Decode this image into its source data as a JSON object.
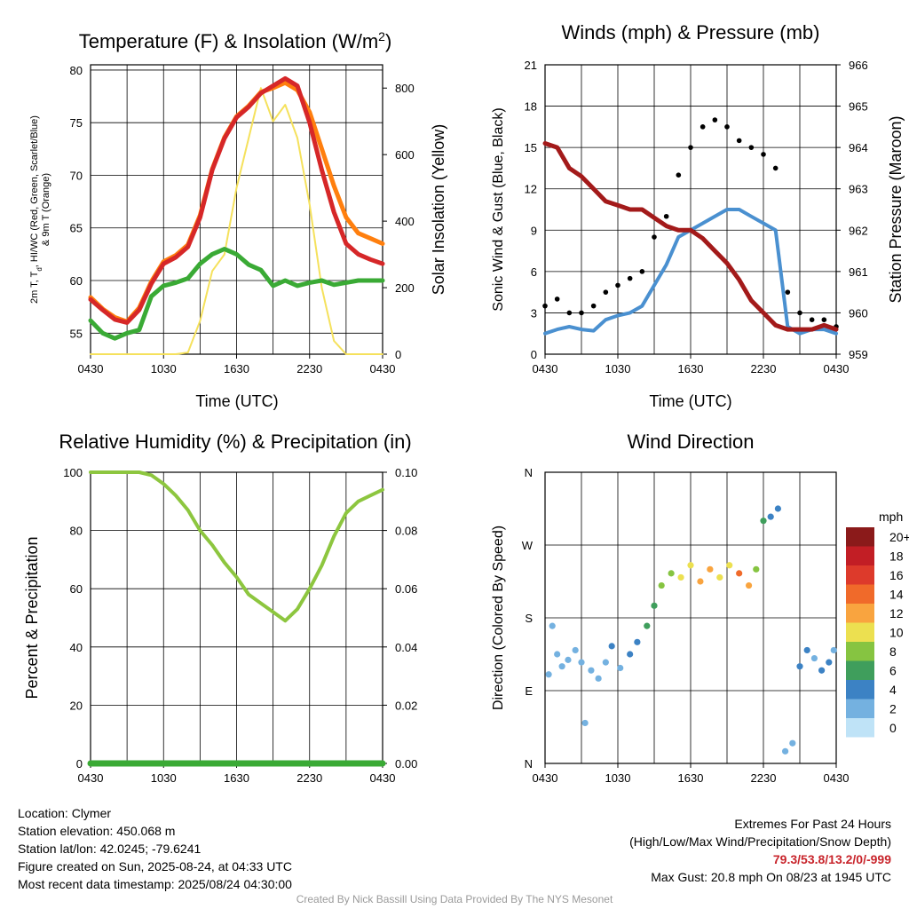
{
  "panels": {
    "temperature": {
      "title": "Temperature (F) & Insolation (W/m",
      "title_sup": "2",
      "title_end": ")",
      "ylabel_left_line1": "2m T, T",
      "ylabel_left_sub": "d",
      "ylabel_left_line1b": ", HI/WC (Red, Green, Scarlet/Blue)",
      "ylabel_left_line2": "& 9m T (Orange)",
      "ylabel_right": "Solar Insolation (Yellow)",
      "xlabel": "Time (UTC)"
    },
    "winds": {
      "title": "Winds (mph) & Pressure (mb)",
      "ylabel_left": "Sonic Wind & Gust (Blue, Black)",
      "ylabel_right": "Station Pressure (Maroon)",
      "xlabel": "Time (UTC)"
    },
    "humidity": {
      "title": "Relative Humidity (%) & Precipitation (in)",
      "ylabel_left": "Percent & Precipitation"
    },
    "direction": {
      "title": "Wind Direction",
      "ylabel_left": "Direction (Colored By Speed)",
      "legend_title": "mph"
    }
  },
  "chart_data": [
    {
      "type": "line",
      "title": "Temperature (F) & Insolation (W/m2)",
      "xlabel": "Time (UTC)",
      "x_ticks": [
        "0430",
        "1030",
        "1630",
        "2230",
        "0430"
      ],
      "x": [
        0,
        1,
        2,
        3,
        4,
        5,
        6,
        7,
        8,
        9,
        10,
        11,
        12,
        13,
        14,
        15,
        16,
        17,
        18,
        19,
        20,
        21,
        22,
        23,
        24
      ],
      "ylim": [
        53,
        80.5
      ],
      "y_ticks": [
        55,
        60,
        65,
        70,
        75,
        80
      ],
      "y2lim": [
        0,
        870
      ],
      "y2_ticks": [
        0,
        200,
        400,
        600,
        800
      ],
      "series": [
        {
          "color": "#d62728",
          "axis": "left",
          "values": [
            58.2,
            57.2,
            56.3,
            56.0,
            57.2,
            59.7,
            61.6,
            62.2,
            63.2,
            66.0,
            70.5,
            73.5,
            75.5,
            76.5,
            77.8,
            78.5,
            79.2,
            78.5,
            75.0,
            70.5,
            66.5,
            63.5,
            62.5,
            62.0,
            61.6
          ]
        },
        {
          "color": "#ff7f0e",
          "axis": "left",
          "values": [
            58.4,
            57.3,
            56.5,
            56.1,
            57.4,
            59.9,
            61.8,
            62.4,
            63.4,
            66.2,
            70.6,
            73.6,
            75.6,
            76.6,
            77.9,
            78.3,
            78.8,
            78.1,
            76.0,
            72.5,
            69.0,
            66.0,
            64.5,
            64.0,
            63.5
          ]
        },
        {
          "color": "#3aaa35",
          "axis": "left",
          "values": [
            56.2,
            55.0,
            54.5,
            55.0,
            55.3,
            58.5,
            59.5,
            59.8,
            60.2,
            61.6,
            62.5,
            63.0,
            62.5,
            61.5,
            61.0,
            59.5,
            60.0,
            59.5,
            59.8,
            60.0,
            59.6,
            59.8,
            60.0,
            60.0,
            60.0
          ]
        },
        {
          "color": "#f5e15c",
          "axis": "right",
          "values": [
            0,
            0,
            0,
            0,
            0,
            0,
            0,
            0,
            5,
            100,
            250,
            300,
            500,
            650,
            800,
            700,
            750,
            650,
            450,
            200,
            40,
            0,
            0,
            0,
            0
          ]
        }
      ]
    },
    {
      "type": "line",
      "title": "Winds (mph) & Pressure (mb)",
      "xlabel": "Time (UTC)",
      "x_ticks": [
        "0430",
        "1030",
        "1630",
        "2230",
        "0430"
      ],
      "x": [
        0,
        1,
        2,
        3,
        4,
        5,
        6,
        7,
        8,
        9,
        10,
        11,
        12,
        13,
        14,
        15,
        16,
        17,
        18,
        19,
        20,
        21,
        22,
        23,
        24
      ],
      "ylim": [
        0,
        21
      ],
      "y_ticks": [
        0,
        3,
        6,
        9,
        12,
        15,
        18,
        21
      ],
      "y2lim": [
        959,
        966
      ],
      "y2_ticks": [
        959,
        960,
        961,
        962,
        963,
        964,
        965,
        966
      ],
      "series": [
        {
          "color": "#4a90d0",
          "axis": "left",
          "values": [
            1.5,
            1.8,
            2.0,
            1.8,
            1.7,
            2.5,
            2.8,
            3.0,
            3.5,
            5.0,
            6.5,
            8.5,
            9.0,
            9.5,
            10.0,
            10.5,
            10.5,
            10.0,
            9.5,
            9.0,
            2.0,
            1.5,
            1.8,
            1.8,
            1.5
          ]
        },
        {
          "color": "#000000",
          "axis": "left",
          "values": [
            3.5,
            4.0,
            3.0,
            3.0,
            3.5,
            4.5,
            5.0,
            5.5,
            6.0,
            8.5,
            10.0,
            13.0,
            15.0,
            16.5,
            17.0,
            16.5,
            15.5,
            15.0,
            14.5,
            13.5,
            4.5,
            3.0,
            2.5,
            2.5,
            2.0
          ]
        },
        {
          "color": "#a31a1a",
          "axis": "right",
          "values": [
            964.1,
            964.0,
            963.5,
            963.3,
            963.0,
            962.7,
            962.6,
            962.5,
            962.5,
            962.3,
            962.1,
            962.0,
            962.0,
            961.8,
            961.5,
            961.2,
            960.8,
            960.3,
            960.0,
            959.7,
            959.6,
            959.6,
            959.6,
            959.7,
            959.6
          ]
        }
      ]
    },
    {
      "type": "line",
      "title": "Relative Humidity (%) & Precipitation (in)",
      "x_ticks": [
        "0430",
        "1030",
        "1630",
        "2230",
        "0430"
      ],
      "x": [
        0,
        1,
        2,
        3,
        4,
        5,
        6,
        7,
        8,
        9,
        10,
        11,
        12,
        13,
        14,
        15,
        16,
        17,
        18,
        19,
        20,
        21,
        22,
        23,
        24
      ],
      "ylim": [
        0,
        100
      ],
      "y_ticks": [
        0,
        20,
        40,
        60,
        80,
        100
      ],
      "y2lim": [
        0,
        0.1
      ],
      "y2_ticks": [
        "0.00",
        "0.02",
        "0.04",
        "0.06",
        "0.08",
        "0.10"
      ],
      "series": [
        {
          "color": "#8dc63f",
          "axis": "left",
          "values": [
            100,
            100,
            100,
            100,
            100,
            99,
            96,
            92,
            87,
            80,
            75,
            69,
            64,
            58,
            55,
            52,
            49,
            53,
            60,
            68,
            78,
            86,
            90,
            92,
            94
          ]
        },
        {
          "color": "#3aaa35",
          "axis": "right",
          "values": [
            0,
            0,
            0,
            0,
            0,
            0,
            0,
            0,
            0,
            0,
            0,
            0,
            0,
            0,
            0,
            0,
            0,
            0,
            0,
            0,
            0,
            0,
            0,
            0,
            0
          ]
        }
      ]
    },
    {
      "type": "scatter",
      "title": "Wind Direction",
      "x_ticks": [
        "0430",
        "1030",
        "1630",
        "2230",
        "0430"
      ],
      "y_ticks": [
        "N",
        "E",
        "S",
        "W",
        "N"
      ],
      "ylim": [
        0,
        360
      ],
      "legend_title": "mph",
      "legend": [
        "20+",
        "18",
        "16",
        "14",
        "12",
        "10",
        "8",
        "6",
        "4",
        "2",
        "0"
      ],
      "legend_colors": [
        "#8b1a1a",
        "#c21e25",
        "#dd3a2b",
        "#f06a2a",
        "#f9a43f",
        "#ece050",
        "#86c441",
        "#3f9e5c",
        "#3c82c4",
        "#74b1e0",
        "#bfe3f7"
      ],
      "points": [
        {
          "x": 0.3,
          "y": 110,
          "speed": 1
        },
        {
          "x": 0.6,
          "y": 170,
          "speed": 1
        },
        {
          "x": 1.0,
          "y": 135,
          "speed": 1
        },
        {
          "x": 1.4,
          "y": 120,
          "speed": 2
        },
        {
          "x": 1.9,
          "y": 128,
          "speed": 1
        },
        {
          "x": 2.5,
          "y": 140,
          "speed": 2
        },
        {
          "x": 3.0,
          "y": 125,
          "speed": 2
        },
        {
          "x": 3.3,
          "y": 50,
          "speed": 1
        },
        {
          "x": 3.8,
          "y": 115,
          "speed": 2
        },
        {
          "x": 4.4,
          "y": 105,
          "speed": 2
        },
        {
          "x": 5.0,
          "y": 125,
          "speed": 2
        },
        {
          "x": 5.5,
          "y": 145,
          "speed": 3
        },
        {
          "x": 6.2,
          "y": 118,
          "speed": 2
        },
        {
          "x": 7.0,
          "y": 135,
          "speed": 3
        },
        {
          "x": 7.6,
          "y": 150,
          "speed": 4
        },
        {
          "x": 8.4,
          "y": 170,
          "speed": 5
        },
        {
          "x": 9.0,
          "y": 195,
          "speed": 6
        },
        {
          "x": 9.6,
          "y": 220,
          "speed": 7
        },
        {
          "x": 10.4,
          "y": 235,
          "speed": 8
        },
        {
          "x": 11.2,
          "y": 230,
          "speed": 9
        },
        {
          "x": 12.0,
          "y": 245,
          "speed": 10
        },
        {
          "x": 12.8,
          "y": 225,
          "speed": 11
        },
        {
          "x": 13.6,
          "y": 240,
          "speed": 12
        },
        {
          "x": 14.4,
          "y": 230,
          "speed": 10
        },
        {
          "x": 15.2,
          "y": 245,
          "speed": 9
        },
        {
          "x": 16.0,
          "y": 235,
          "speed": 13
        },
        {
          "x": 16.8,
          "y": 220,
          "speed": 11
        },
        {
          "x": 17.4,
          "y": 240,
          "speed": 8
        },
        {
          "x": 18.0,
          "y": 300,
          "speed": 6
        },
        {
          "x": 18.6,
          "y": 305,
          "speed": 4
        },
        {
          "x": 19.2,
          "y": 315,
          "speed": 3
        },
        {
          "x": 19.8,
          "y": 15,
          "speed": 1
        },
        {
          "x": 20.4,
          "y": 25,
          "speed": 1
        },
        {
          "x": 21.0,
          "y": 120,
          "speed": 3
        },
        {
          "x": 21.6,
          "y": 140,
          "speed": 3
        },
        {
          "x": 22.2,
          "y": 130,
          "speed": 2
        },
        {
          "x": 22.8,
          "y": 115,
          "speed": 3
        },
        {
          "x": 23.4,
          "y": 125,
          "speed": 3
        },
        {
          "x": 23.8,
          "y": 140,
          "speed": 2
        }
      ]
    }
  ],
  "info": {
    "location": "Location: Clymer",
    "elevation": "Station elevation: 450.068 m",
    "latlon": "Station lat/lon: 42.0245; -79.6241",
    "created": "Figure created on Sun, 2025-08-24, at 04:33 UTC",
    "recent": "Most recent data timestamp: 2025/08/24 04:30:00"
  },
  "extremes": {
    "heading": "Extremes For Past 24 Hours",
    "legend": "(High/Low/Max Wind/Precipitation/Snow Depth)",
    "values": "79.3/53.8/13.2/0/-999",
    "gust": "Max Gust: 20.8 mph On 08/23 at 1945 UTC",
    "values_color": "#c8242b"
  },
  "credit": "Created By Nick Bassill Using Data Provided By The NYS Mesonet"
}
